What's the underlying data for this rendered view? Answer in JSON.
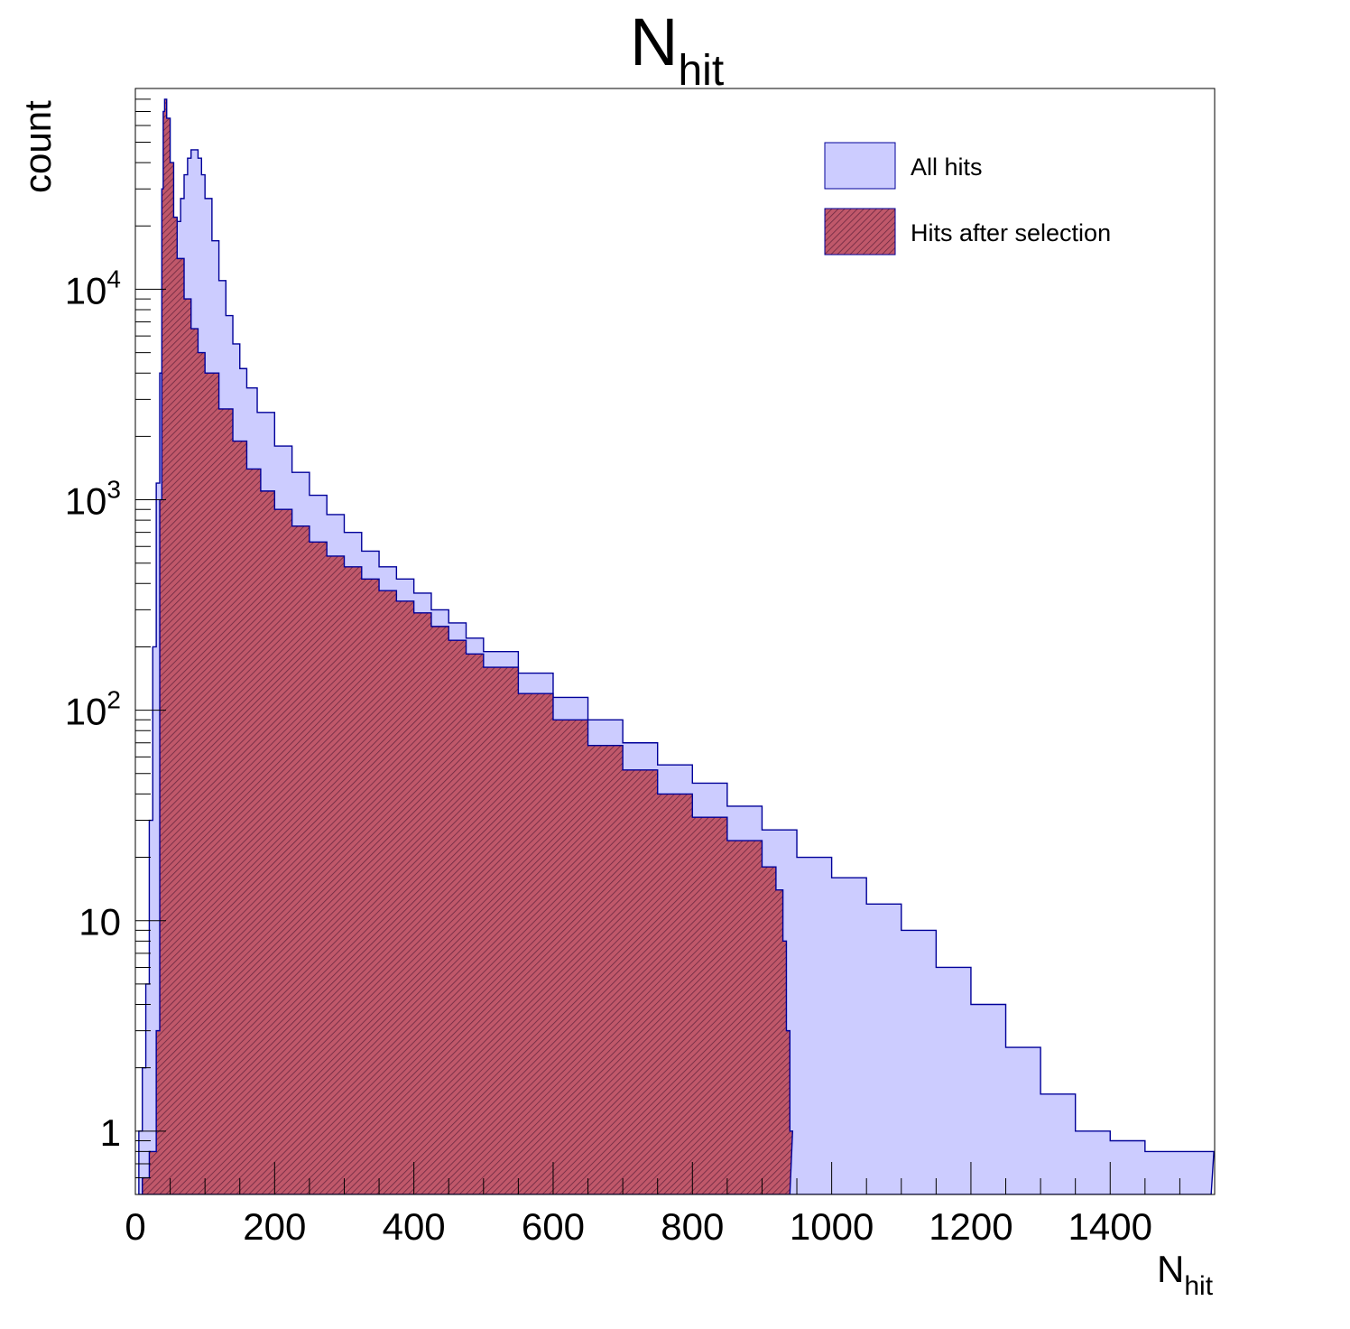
{
  "chart_data": {
    "type": "histogram",
    "title": "N",
    "title_subscript": "hit",
    "xlabel": "N",
    "xlabel_subscript": "hit",
    "ylabel": "count",
    "xlim": [
      0,
      1550
    ],
    "ylim": [
      0.5,
      90000
    ],
    "y_scale": "log",
    "grid": false,
    "legend_position": "top-right",
    "x_ticks": [
      {
        "value": 0,
        "label": "0"
      },
      {
        "value": 200,
        "label": "200"
      },
      {
        "value": 400,
        "label": "400"
      },
      {
        "value": 600,
        "label": "600"
      },
      {
        "value": 800,
        "label": "800"
      },
      {
        "value": 1000,
        "label": "1000"
      },
      {
        "value": 1200,
        "label": "1200"
      },
      {
        "value": 1400,
        "label": "1400"
      }
    ],
    "y_ticks": [
      {
        "value": 1,
        "base": "1",
        "exp": ""
      },
      {
        "value": 10,
        "base": "10",
        "exp": ""
      },
      {
        "value": 100,
        "base": "10",
        "exp": "2"
      },
      {
        "value": 1000,
        "base": "10",
        "exp": "3"
      },
      {
        "value": 10000,
        "base": "10",
        "exp": "4"
      }
    ],
    "series": [
      {
        "name": "All hits",
        "fill": "#ccccff",
        "line": "#000099",
        "hatched": false,
        "points": [
          [
            5,
            1
          ],
          [
            10,
            2
          ],
          [
            15,
            5
          ],
          [
            20,
            30
          ],
          [
            25,
            200
          ],
          [
            30,
            1200
          ],
          [
            35,
            4000
          ],
          [
            40,
            8000
          ],
          [
            45,
            11000
          ],
          [
            50,
            14000
          ],
          [
            55,
            17000
          ],
          [
            60,
            21000
          ],
          [
            65,
            27000
          ],
          [
            70,
            35000
          ],
          [
            75,
            42000
          ],
          [
            80,
            46000
          ],
          [
            85,
            46000
          ],
          [
            90,
            42000
          ],
          [
            95,
            35000
          ],
          [
            100,
            27000
          ],
          [
            110,
            17000
          ],
          [
            120,
            11000
          ],
          [
            130,
            7500
          ],
          [
            140,
            5500
          ],
          [
            150,
            4200
          ],
          [
            160,
            3400
          ],
          [
            175,
            2600
          ],
          [
            200,
            1800
          ],
          [
            225,
            1350
          ],
          [
            250,
            1050
          ],
          [
            275,
            850
          ],
          [
            300,
            700
          ],
          [
            325,
            570
          ],
          [
            350,
            480
          ],
          [
            375,
            420
          ],
          [
            400,
            360
          ],
          [
            425,
            300
          ],
          [
            450,
            260
          ],
          [
            475,
            220
          ],
          [
            500,
            190
          ],
          [
            550,
            150
          ],
          [
            600,
            115
          ],
          [
            650,
            90
          ],
          [
            700,
            70
          ],
          [
            750,
            55
          ],
          [
            800,
            45
          ],
          [
            850,
            35
          ],
          [
            900,
            27
          ],
          [
            950,
            20
          ],
          [
            1000,
            16
          ],
          [
            1050,
            12
          ],
          [
            1100,
            9
          ],
          [
            1150,
            6
          ],
          [
            1200,
            4
          ],
          [
            1250,
            2.5
          ],
          [
            1300,
            1.5
          ],
          [
            1350,
            1
          ],
          [
            1400,
            0.9
          ],
          [
            1450,
            0.8
          ],
          [
            1500,
            0.8
          ],
          [
            1545,
            0.8
          ]
        ]
      },
      {
        "name": "Hits after selection",
        "fill": "#b85a6e",
        "line": "#000099",
        "hatched": true,
        "points": [
          [
            10,
            0.6
          ],
          [
            20,
            0.8
          ],
          [
            30,
            3
          ],
          [
            35,
            1000
          ],
          [
            38,
            30000
          ],
          [
            40,
            70000
          ],
          [
            42,
            80000
          ],
          [
            45,
            65000
          ],
          [
            50,
            40000
          ],
          [
            55,
            22000
          ],
          [
            60,
            14000
          ],
          [
            70,
            9000
          ],
          [
            80,
            6500
          ],
          [
            90,
            5000
          ],
          [
            100,
            4000
          ],
          [
            120,
            2700
          ],
          [
            140,
            1900
          ],
          [
            160,
            1400
          ],
          [
            180,
            1100
          ],
          [
            200,
            900
          ],
          [
            225,
            750
          ],
          [
            250,
            630
          ],
          [
            275,
            540
          ],
          [
            300,
            480
          ],
          [
            325,
            420
          ],
          [
            350,
            370
          ],
          [
            375,
            330
          ],
          [
            400,
            290
          ],
          [
            425,
            250
          ],
          [
            450,
            215
          ],
          [
            475,
            185
          ],
          [
            500,
            160
          ],
          [
            550,
            120
          ],
          [
            600,
            90
          ],
          [
            650,
            68
          ],
          [
            700,
            52
          ],
          [
            750,
            40
          ],
          [
            800,
            31
          ],
          [
            850,
            24
          ],
          [
            900,
            18
          ],
          [
            920,
            14
          ],
          [
            930,
            8
          ],
          [
            935,
            3
          ],
          [
            940,
            1
          ]
        ]
      }
    ]
  }
}
